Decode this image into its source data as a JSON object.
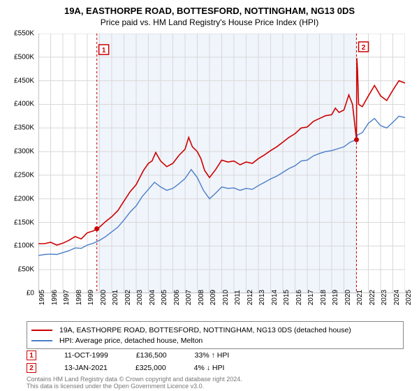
{
  "title": "19A, EASTHORPE ROAD, BOTTESFORD, NOTTINGHAM, NG13 0DS",
  "subtitle": "Price paid vs. HM Land Registry's House Price Index (HPI)",
  "chart": {
    "type": "line",
    "background_color": "#ffffff",
    "plot_background_band": "#f0f4fb",
    "grid_color": "#d8d8d8",
    "axis_color": "#888888",
    "y_axis": {
      "min": 0,
      "max": 550,
      "tick_step": 50,
      "labels": [
        "£0",
        "£50K",
        "£100K",
        "£150K",
        "£200K",
        "£250K",
        "£300K",
        "£350K",
        "£400K",
        "£450K",
        "£500K",
        "£550K"
      ],
      "label_fontsize": 10
    },
    "x_axis": {
      "min": 1995,
      "max": 2025,
      "tick_step": 1,
      "labels": [
        "1995",
        "1996",
        "1997",
        "1998",
        "1999",
        "2000",
        "2001",
        "2002",
        "2003",
        "2004",
        "2005",
        "2006",
        "2007",
        "2008",
        "2009",
        "2010",
        "2011",
        "2012",
        "2013",
        "2014",
        "2015",
        "2016",
        "2017",
        "2018",
        "2019",
        "2020",
        "2021",
        "2022",
        "2023",
        "2024",
        "2025"
      ],
      "label_fontsize": 10,
      "label_rotation": -90
    },
    "band_start_year": 1999.78,
    "band_end_year": 2021.03,
    "series": [
      {
        "name": "property",
        "color": "#cc0000",
        "line_width": 1.6,
        "label": "19A, EASTHORPE ROAD, BOTTESFORD, NOTTINGHAM, NG13 0DS (detached house)",
        "data": [
          [
            1995,
            105
          ],
          [
            1995.5,
            105
          ],
          [
            1996,
            108
          ],
          [
            1996.5,
            102
          ],
          [
            1997,
            106
          ],
          [
            1997.5,
            112
          ],
          [
            1998,
            120
          ],
          [
            1998.5,
            115
          ],
          [
            1999,
            128
          ],
          [
            1999.5,
            132
          ],
          [
            1999.78,
            136.5
          ],
          [
            2000,
            140
          ],
          [
            2000.5,
            152
          ],
          [
            2001,
            162
          ],
          [
            2001.5,
            175
          ],
          [
            2002,
            195
          ],
          [
            2002.5,
            215
          ],
          [
            2003,
            230
          ],
          [
            2003.3,
            245
          ],
          [
            2003.6,
            260
          ],
          [
            2004,
            275
          ],
          [
            2004.3,
            280
          ],
          [
            2004.6,
            298
          ],
          [
            2005,
            280
          ],
          [
            2005.5,
            268
          ],
          [
            2006,
            275
          ],
          [
            2006.5,
            292
          ],
          [
            2007,
            305
          ],
          [
            2007.3,
            330
          ],
          [
            2007.6,
            310
          ],
          [
            2008,
            300
          ],
          [
            2008.3,
            285
          ],
          [
            2008.6,
            260
          ],
          [
            2009,
            245
          ],
          [
            2009.5,
            262
          ],
          [
            2010,
            282
          ],
          [
            2010.5,
            278
          ],
          [
            2011,
            280
          ],
          [
            2011.5,
            272
          ],
          [
            2012,
            278
          ],
          [
            2012.5,
            275
          ],
          [
            2013,
            285
          ],
          [
            2013.5,
            293
          ],
          [
            2014,
            302
          ],
          [
            2014.5,
            310
          ],
          [
            2015,
            320
          ],
          [
            2015.5,
            330
          ],
          [
            2016,
            338
          ],
          [
            2016.5,
            350
          ],
          [
            2017,
            352
          ],
          [
            2017.5,
            364
          ],
          [
            2018,
            370
          ],
          [
            2018.5,
            376
          ],
          [
            2019,
            378
          ],
          [
            2019.3,
            392
          ],
          [
            2019.6,
            383
          ],
          [
            2020,
            388
          ],
          [
            2020.4,
            420
          ],
          [
            2020.7,
            400
          ],
          [
            2021.03,
            325
          ],
          [
            2021.06,
            498
          ],
          [
            2021.12,
            470
          ],
          [
            2021.2,
            400
          ],
          [
            2021.5,
            395
          ],
          [
            2022,
            418
          ],
          [
            2022.5,
            440
          ],
          [
            2023,
            418
          ],
          [
            2023.5,
            408
          ],
          [
            2024,
            430
          ],
          [
            2024.5,
            450
          ],
          [
            2025,
            445
          ]
        ]
      },
      {
        "name": "hpi",
        "color": "#4a7ec8",
        "line_width": 1.4,
        "label": "HPI: Average price, detached house, Melton",
        "data": [
          [
            1995,
            80
          ],
          [
            1995.5,
            82
          ],
          [
            1996,
            83
          ],
          [
            1996.5,
            82
          ],
          [
            1997,
            86
          ],
          [
            1997.5,
            90
          ],
          [
            1998,
            96
          ],
          [
            1998.5,
            95
          ],
          [
            1999,
            102
          ],
          [
            1999.5,
            106
          ],
          [
            2000,
            112
          ],
          [
            2000.5,
            120
          ],
          [
            2001,
            130
          ],
          [
            2001.5,
            140
          ],
          [
            2002,
            155
          ],
          [
            2002.5,
            172
          ],
          [
            2003,
            185
          ],
          [
            2003.5,
            205
          ],
          [
            2004,
            220
          ],
          [
            2004.5,
            235
          ],
          [
            2005,
            225
          ],
          [
            2005.5,
            218
          ],
          [
            2006,
            222
          ],
          [
            2006.5,
            232
          ],
          [
            2007,
            243
          ],
          [
            2007.5,
            262
          ],
          [
            2008,
            245
          ],
          [
            2008.5,
            218
          ],
          [
            2009,
            200
          ],
          [
            2009.5,
            212
          ],
          [
            2010,
            225
          ],
          [
            2010.5,
            222
          ],
          [
            2011,
            223
          ],
          [
            2011.5,
            218
          ],
          [
            2012,
            222
          ],
          [
            2012.5,
            220
          ],
          [
            2013,
            228
          ],
          [
            2013.5,
            235
          ],
          [
            2014,
            242
          ],
          [
            2014.5,
            248
          ],
          [
            2015,
            256
          ],
          [
            2015.5,
            264
          ],
          [
            2016,
            270
          ],
          [
            2016.5,
            280
          ],
          [
            2017,
            282
          ],
          [
            2017.5,
            291
          ],
          [
            2018,
            296
          ],
          [
            2018.5,
            300
          ],
          [
            2019,
            302
          ],
          [
            2019.5,
            306
          ],
          [
            2020,
            310
          ],
          [
            2020.5,
            320
          ],
          [
            2021,
            325
          ],
          [
            2021.1,
            335
          ],
          [
            2021.5,
            340
          ],
          [
            2022,
            360
          ],
          [
            2022.5,
            370
          ],
          [
            2023,
            355
          ],
          [
            2023.5,
            350
          ],
          [
            2024,
            362
          ],
          [
            2024.5,
            375
          ],
          [
            2025,
            372
          ]
        ]
      }
    ],
    "markers": [
      {
        "id": "1",
        "year": 1999.78,
        "value_k": 136.5,
        "date": "11-OCT-1999",
        "price": "£136,500",
        "pct": "33% ↑ HPI"
      },
      {
        "id": "2",
        "year": 2021.03,
        "value_k": 325,
        "date": "13-JAN-2021",
        "price": "£325,000",
        "pct": "4% ↓ HPI"
      }
    ],
    "marker_style": {
      "box_border_color": "#cc0000",
      "box_text_color": "#cc0000",
      "dashed_line_color": "#cc0000",
      "dot_color": "#cc0000"
    }
  },
  "legend": {
    "border_color": "#888888",
    "fontsize": 10.5
  },
  "footnote_line1": "Contains HM Land Registry data © Crown copyright and database right 2024.",
  "footnote_line2": "This data is licensed under the Open Government Licence v3.0."
}
